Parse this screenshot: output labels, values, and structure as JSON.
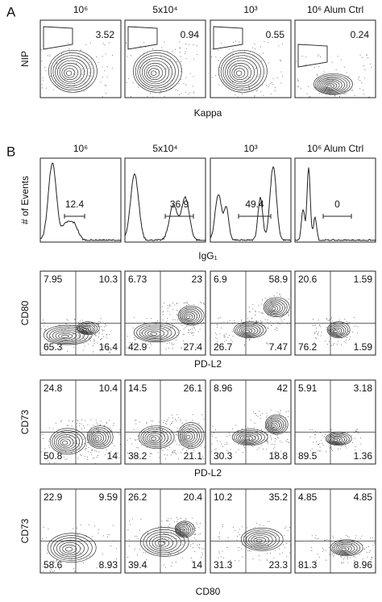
{
  "panels": [
    {
      "label": "A",
      "columns": [
        "10⁶",
        "5x10⁴",
        "10³",
        "10⁶ Alum Ctrl"
      ],
      "y_label": "NIP",
      "x_label": "Kappa",
      "gate_values": [
        3.52,
        0.94,
        0.55,
        0.24
      ]
    },
    {
      "label": "B",
      "columns": [
        "10⁶",
        "5x10⁴",
        "10³",
        "10⁶ Alum Ctrl"
      ],
      "histogram": {
        "y_label": "# of Events",
        "x_label": "IgG₁",
        "gate_values": [
          12.4,
          36.9,
          49.4,
          0
        ]
      },
      "quadrant_rows": [
        {
          "y_label": "CD80",
          "x_label": "PD-L2",
          "values": [
            [
              7.95,
              10.3,
              65.3,
              16.4
            ],
            [
              6.73,
              23,
              42.9,
              27.4
            ],
            [
              6.9,
              58.9,
              26.7,
              7.47
            ],
            [
              20.6,
              1.59,
              76.2,
              1.59
            ]
          ]
        },
        {
          "y_label": "CD73",
          "x_label": "PD-L2",
          "values": [
            [
              24.8,
              10.4,
              50.8,
              14
            ],
            [
              14.5,
              26.1,
              38.2,
              21.1
            ],
            [
              8.96,
              42,
              30.3,
              18.8
            ],
            [
              5.91,
              3.18,
              89.5,
              1.36
            ]
          ]
        },
        {
          "y_label": "CD73",
          "x_label": "CD80",
          "values": [
            [
              22.9,
              9.59,
              58.6,
              8.93
            ],
            [
              26.2,
              20.4,
              39.4,
              14
            ],
            [
              10.2,
              35.2,
              31.3,
              23.3
            ],
            [
              4.85,
              4.85,
              81.3,
              8.96
            ]
          ]
        }
      ]
    }
  ]
}
